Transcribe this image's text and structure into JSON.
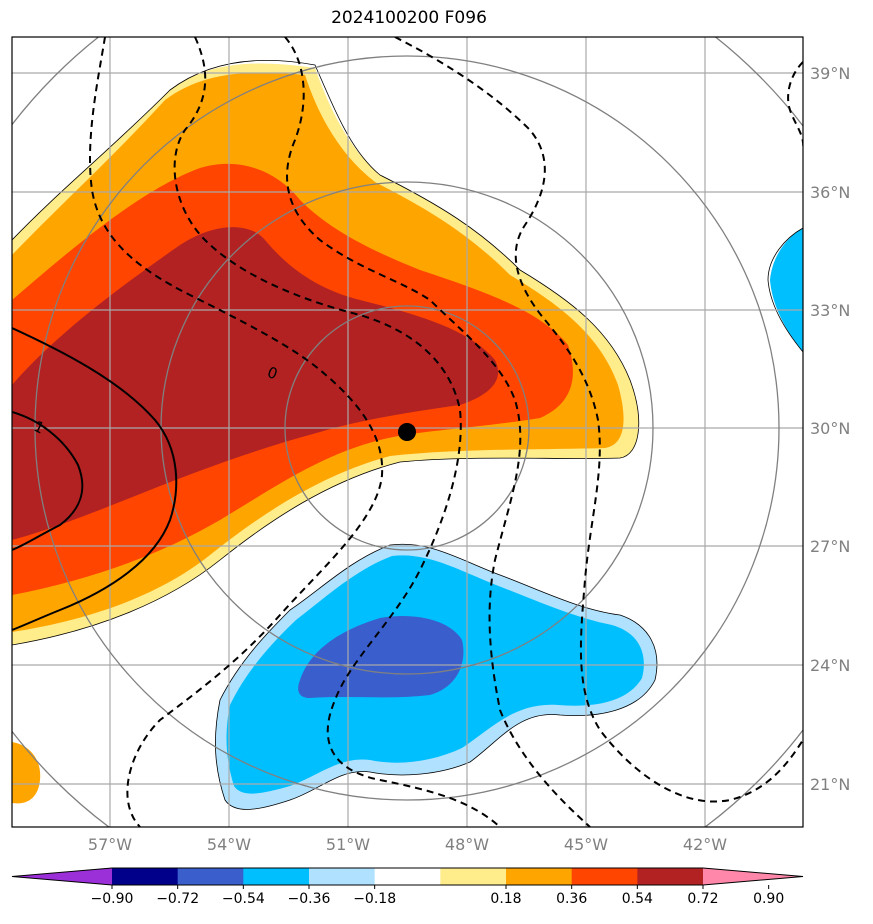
{
  "title": "2024100200 F096",
  "map": {
    "lat_labels": [
      "39°N",
      "36°N",
      "33°N",
      "30°N",
      "27°N",
      "24°N",
      "21°N"
    ],
    "lon_labels": [
      "57°W",
      "54°W",
      "51°W",
      "48°W",
      "45°W",
      "42°W"
    ],
    "center_marker": "storm-center",
    "contour_labels": [
      "0",
      "1"
    ]
  },
  "colorbar": {
    "labels": [
      "−0.90",
      "−0.72",
      "−0.54",
      "−0.36",
      "−0.18",
      "0.18",
      "0.36",
      "0.54",
      "0.72",
      "0.90"
    ],
    "colors": [
      "#9b30d9",
      "#00008b",
      "#3a5fcd",
      "#00bfff",
      "#b0e2ff",
      "#ffffff",
      "#ffec8b",
      "#ffa500",
      "#ff4500",
      "#b22222",
      "#ff88aa"
    ]
  }
}
